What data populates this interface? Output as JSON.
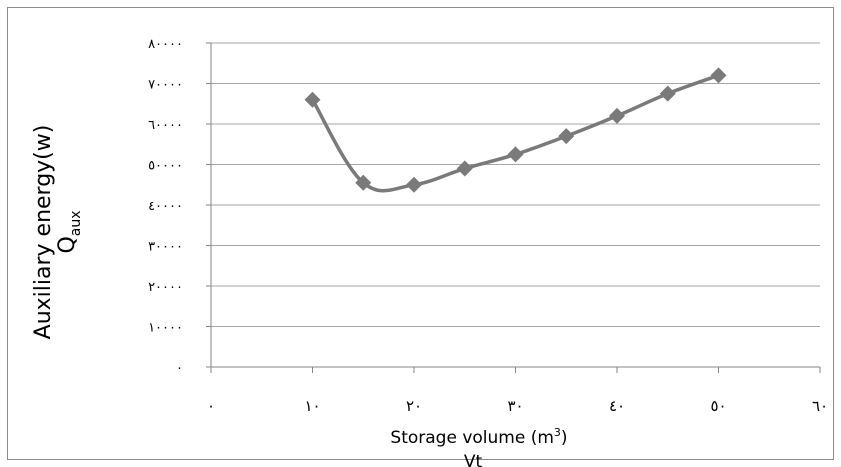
{
  "chart_data": {
    "type": "line",
    "x": [
      10,
      15,
      20,
      25,
      30,
      35,
      40,
      45,
      50
    ],
    "series": [
      {
        "values": [
          66000,
          45500,
          45000,
          49000,
          52500,
          57000,
          62000,
          67500,
          72000
        ]
      }
    ],
    "xlim": [
      0,
      60
    ],
    "ylim": [
      0,
      80000
    ],
    "x_ticks": [
      0,
      10,
      20,
      30,
      40,
      50,
      60
    ],
    "y_ticks": [
      0,
      10000,
      20000,
      30000,
      40000,
      50000,
      60000,
      70000,
      80000
    ],
    "x_tick_labels": [
      "٠",
      "١٠",
      "٢٠",
      "٣٠",
      "٤٠",
      "٥٠",
      "٦٠"
    ],
    "y_tick_labels": [
      "٠",
      "١٠٠٠٠",
      "٢٠٠٠٠",
      "٣٠٠٠٠",
      "٤٠٠٠٠",
      "٥٠٠٠٠",
      "٦٠٠٠٠",
      "٧٠٠٠٠",
      "٨٠٠٠٠"
    ],
    "xlabel": "Storage volume (m",
    "xlabel_sup": "3",
    "xlabel_close": ")",
    "xlabel_line2": "Vt",
    "ylabel": "Auxiliary energy(w)",
    "ylabel_line2": "Q",
    "ylabel_line2_sub": "aux",
    "grid": "horizontal",
    "legend": "none",
    "marker": "diamond",
    "smooth": true,
    "colors": {
      "series": "#7a7a7a",
      "grid": "#a6a6a6",
      "axis": "#868686",
      "text": "#000000",
      "frame": "#8c8c8c"
    }
  }
}
